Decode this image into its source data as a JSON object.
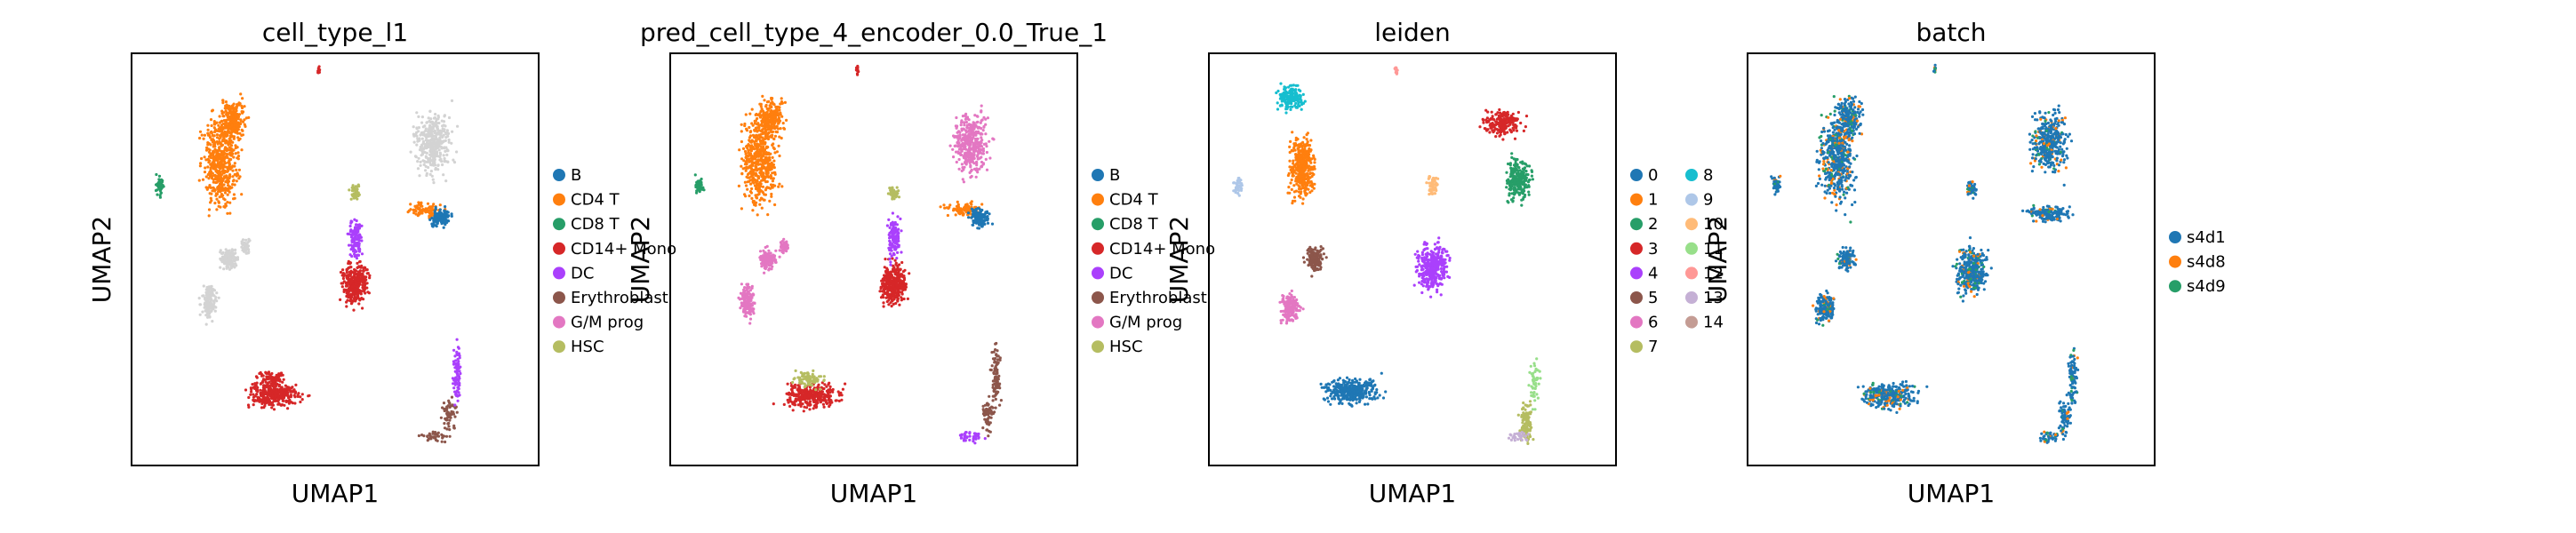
{
  "chart_data": [
    {
      "type": "scatter",
      "title": "cell_type_l1",
      "xlabel": "UMAP1",
      "ylabel": "UMAP2",
      "grid": false,
      "legend_position": "right",
      "legend": [
        {
          "label": "B",
          "color": "#1f77b4"
        },
        {
          "label": "CD4 T",
          "color": "#ff7f0e"
        },
        {
          "label": "CD8 T",
          "color": "#279e68"
        },
        {
          "label": "CD14+ Mono",
          "color": "#d62728"
        },
        {
          "label": "DC",
          "color": "#aa40fc"
        },
        {
          "label": "Erythroblast",
          "color": "#8c564b"
        },
        {
          "label": "G/M prog",
          "color": "#e377c2"
        },
        {
          "label": "HSC",
          "color": "#b5bd61"
        }
      ]
    },
    {
      "type": "scatter",
      "title": "pred_cell_type_4_encoder_0.0_True_1",
      "xlabel": "UMAP1",
      "ylabel": "UMAP2",
      "grid": false,
      "legend_position": "right",
      "legend": [
        {
          "label": "B",
          "color": "#1f77b4"
        },
        {
          "label": "CD4 T",
          "color": "#ff7f0e"
        },
        {
          "label": "CD8 T",
          "color": "#279e68"
        },
        {
          "label": "CD14+ Mono",
          "color": "#d62728"
        },
        {
          "label": "DC",
          "color": "#aa40fc"
        },
        {
          "label": "Erythroblast",
          "color": "#8c564b"
        },
        {
          "label": "G/M prog",
          "color": "#e377c2"
        },
        {
          "label": "HSC",
          "color": "#b5bd61"
        }
      ]
    },
    {
      "type": "scatter",
      "title": "leiden",
      "xlabel": "UMAP1",
      "ylabel": "UMAP2",
      "grid": false,
      "legend_position": "right",
      "legend": [
        {
          "label": "0",
          "color": "#1f77b4"
        },
        {
          "label": "1",
          "color": "#ff7f0e"
        },
        {
          "label": "2",
          "color": "#279e68"
        },
        {
          "label": "3",
          "color": "#d62728"
        },
        {
          "label": "4",
          "color": "#aa40fc"
        },
        {
          "label": "5",
          "color": "#8c564b"
        },
        {
          "label": "6",
          "color": "#e377c2"
        },
        {
          "label": "7",
          "color": "#b5bd61"
        },
        {
          "label": "8",
          "color": "#17becf"
        },
        {
          "label": "9",
          "color": "#aec7e8"
        },
        {
          "label": "10",
          "color": "#ffbb78"
        },
        {
          "label": "11",
          "color": "#98df8a"
        },
        {
          "label": "12",
          "color": "#ff9896"
        },
        {
          "label": "13",
          "color": "#c5b0d5"
        },
        {
          "label": "14",
          "color": "#c49c94"
        }
      ]
    },
    {
      "type": "scatter",
      "title": "batch",
      "xlabel": "UMAP1",
      "ylabel": "UMAP2",
      "grid": false,
      "legend_position": "right",
      "legend": [
        {
          "label": "s4d1",
          "color": "#1f77b4"
        },
        {
          "label": "s4d8",
          "color": "#ff7f0e"
        },
        {
          "label": "s4d9",
          "color": "#279e68"
        }
      ]
    }
  ]
}
